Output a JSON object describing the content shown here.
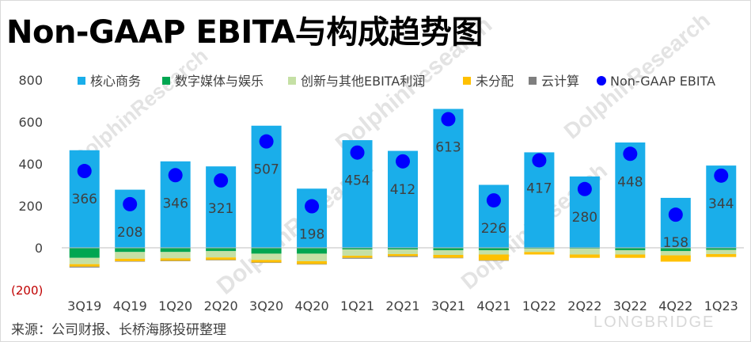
{
  "title": "Non-GAAP EBITA与构成趋势图",
  "source": "来源：公司财报、长桥海豚投研整理",
  "watermark": "DolphinResearch",
  "brand": "LONGBRIDGE",
  "chart_data": {
    "type": "bar",
    "stacked": true,
    "categories": [
      "3Q19",
      "4Q19",
      "1Q20",
      "2Q20",
      "3Q20",
      "4Q20",
      "1Q21",
      "2Q21",
      "3Q21",
      "4Q21",
      "1Q22",
      "2Q22",
      "3Q22",
      "4Q22",
      "1Q23"
    ],
    "ylim": [
      -200,
      800
    ],
    "yticks": [
      800,
      600,
      400,
      200,
      0,
      -200
    ],
    "ytick_labels": [
      "800",
      "600",
      "400",
      "200",
      "0",
      "(200)"
    ],
    "grid": false,
    "legend_position": "top",
    "series": [
      {
        "name": "核心商务",
        "type": "bar",
        "color": "#1aaeea",
        "values": [
          465,
          277,
          412,
          388,
          582,
          282,
          513,
          462,
          662,
          300,
          455,
          340,
          502,
          238,
          392
        ]
      },
      {
        "name": "数字媒体与娱乐",
        "type": "bar",
        "color": "#00a651",
        "values": [
          -48,
          -20,
          -20,
          -16,
          -28,
          -28,
          -8,
          -8,
          -12,
          -12,
          -4,
          -4,
          -12,
          -16,
          -10
        ]
      },
      {
        "name": "创新与其他EBITA利润",
        "type": "bar",
        "color": "#c5e0a5",
        "values": [
          -30,
          -32,
          -30,
          -30,
          -30,
          -36,
          -30,
          -22,
          -22,
          -20,
          -16,
          -28,
          -20,
          -20,
          -20
        ]
      },
      {
        "name": "未分配",
        "type": "bar",
        "color": "#ffc000",
        "values": [
          -12,
          -12,
          -12,
          -12,
          -12,
          -14,
          -10,
          -10,
          -14,
          -28,
          -12,
          -16,
          -16,
          -30,
          -14
        ]
      },
      {
        "name": "云计算",
        "type": "bar",
        "color": "#7f7f7f",
        "values": [
          -4,
          -2,
          -2,
          -2,
          -2,
          -2,
          -4,
          -4,
          -2,
          -2,
          0,
          0,
          0,
          0,
          0
        ]
      },
      {
        "name": "Non-GAAP EBITA",
        "type": "scatter",
        "color": "#0000ff",
        "values": [
          366,
          208,
          346,
          321,
          507,
          198,
          454,
          412,
          613,
          226,
          417,
          280,
          448,
          158,
          344
        ]
      }
    ],
    "data_labels": [
      "366",
      "208",
      "346",
      "321",
      "507",
      "198",
      "454",
      "412",
      "613",
      "226",
      "417",
      "280",
      "448",
      "158",
      "344"
    ]
  }
}
